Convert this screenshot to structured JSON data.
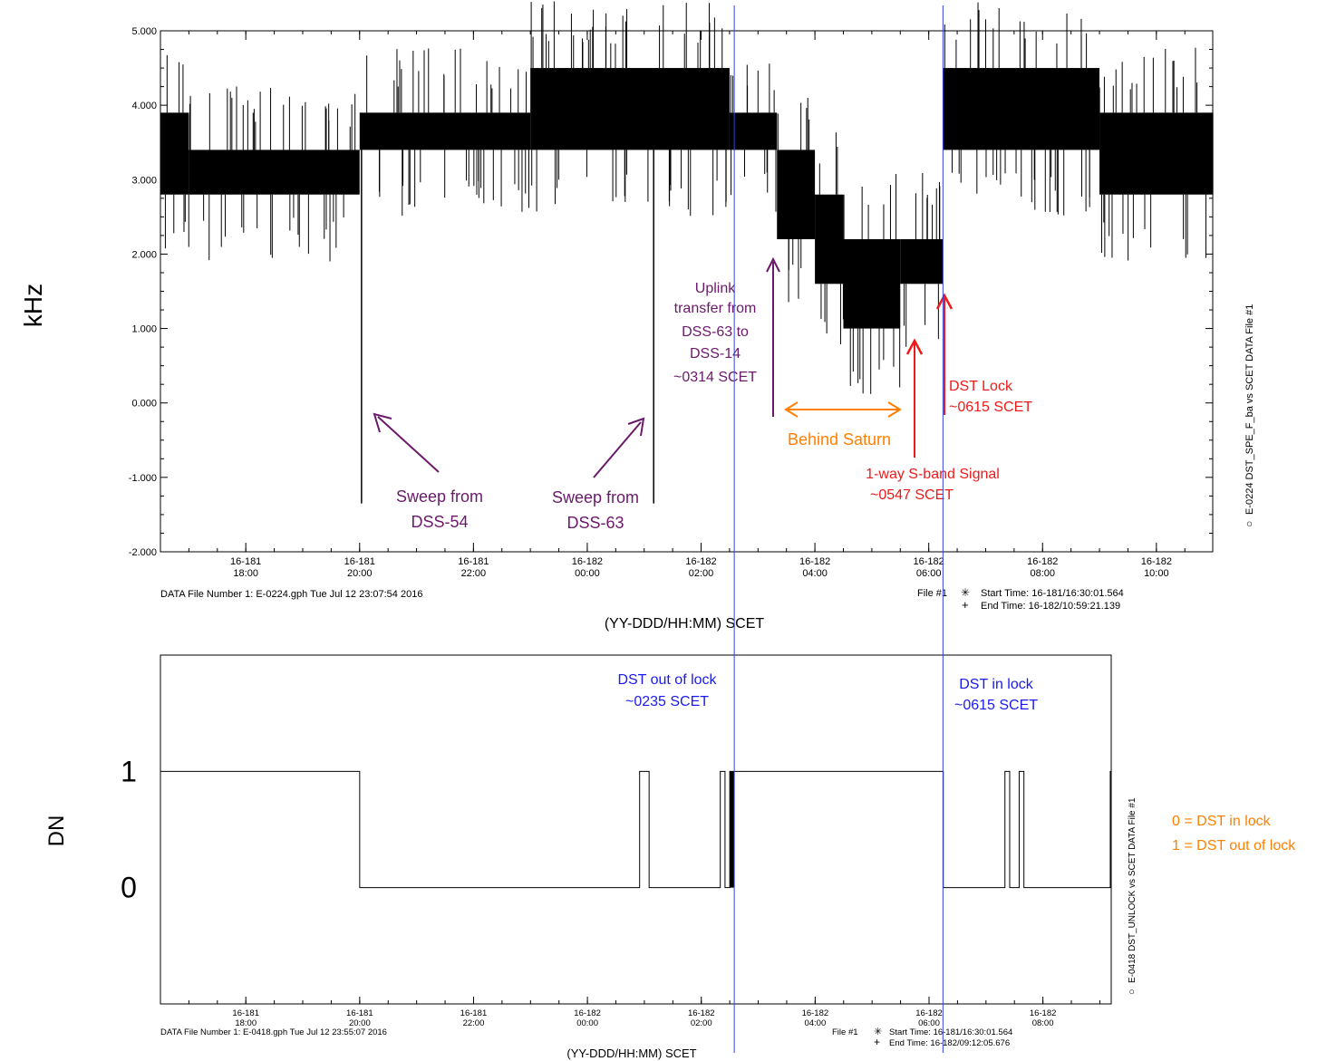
{
  "colors": {
    "trace": "#000000",
    "marker_line": "#3344dd",
    "purple": "#6b1a6b",
    "orange": "#ff8000",
    "red": "#ee1a1a",
    "blue": "#1a1aee"
  },
  "chart_data": [
    {
      "type": "line",
      "title": "",
      "xlabel": "(YY-DDD/HH:MM) SCET",
      "ylabel": "kHz",
      "ylim": [
        -2.0,
        5.0
      ],
      "y_ticks": [
        "5.000",
        "4.000",
        "3.000",
        "2.000",
        "1.000",
        "0.000",
        "-1.000",
        "-2.000"
      ],
      "x_range_hours": [
        16.5,
        34.99
      ],
      "x_ticks": [
        {
          "day": "16-181",
          "time": "18:00"
        },
        {
          "day": "16-181",
          "time": "20:00"
        },
        {
          "day": "16-181",
          "time": "22:00"
        },
        {
          "day": "16-182",
          "time": "00:00"
        },
        {
          "day": "16-182",
          "time": "02:00"
        },
        {
          "day": "16-182",
          "time": "04:00"
        },
        {
          "day": "16-182",
          "time": "06:00"
        },
        {
          "day": "16-182",
          "time": "08:00"
        },
        {
          "day": "16-182",
          "time": "10:00"
        }
      ],
      "side_label": "E-0224  DST_SPE_F_ba vs SCET  DATA File #1",
      "footer_left": "DATA File Number 1: E-0224.gph  Tue Jul 12 23:07:54 2016",
      "footer_file": "File #1",
      "start_time": "Start Time: 16-181/16:30:01.564",
      "end_time": "End Time: 16-182/10:59:21.139",
      "segments": [
        {
          "from": "16-181/16:30",
          "to": "16-181/17:00",
          "low": 2.8,
          "high": 3.9
        },
        {
          "from": "16-181/17:00",
          "to": "16-181/20:00",
          "low": 2.8,
          "high": 3.4
        },
        {
          "from": "16-181/20:00",
          "to": "16-181/23:00",
          "low": 3.4,
          "high": 3.9
        },
        {
          "from": "16-181/23:00",
          "to": "16-182/02:30",
          "low": 3.4,
          "high": 4.5
        },
        {
          "from": "16-182/02:30",
          "to": "16-182/03:20",
          "low": 3.4,
          "high": 3.9
        },
        {
          "from": "16-182/03:20",
          "to": "16-182/04:00",
          "low": 2.2,
          "high": 3.4
        },
        {
          "from": "16-182/04:00",
          "to": "16-182/04:30",
          "low": 1.6,
          "high": 2.8
        },
        {
          "from": "16-182/04:30",
          "to": "16-182/05:30",
          "low": 1.0,
          "high": 2.2
        },
        {
          "from": "16-182/05:30",
          "to": "16-182/06:15",
          "low": 1.6,
          "high": 2.2
        },
        {
          "from": "16-182/06:15",
          "to": "16-182/09:00",
          "low": 3.4,
          "high": 4.5
        },
        {
          "from": "16-182/09:00",
          "to": "16-182/11:00",
          "low": 2.8,
          "high": 3.9
        }
      ],
      "sweeps": [
        {
          "time": "16-181/20:02",
          "min": -1.35
        },
        {
          "time": "16-182/01:10",
          "min": -1.35
        }
      ],
      "annotations": {
        "sweep_54": {
          "lines": [
            "Sweep from",
            "DSS-54"
          ]
        },
        "sweep_63": {
          "lines": [
            "Sweep from",
            "DSS-63"
          ]
        },
        "uplink": {
          "lines": [
            "Uplink",
            "transfer from",
            "DSS-63 to",
            "DSS-14",
            "~0314 SCET"
          ]
        },
        "behind_saturn": "Behind Saturn",
        "one_way": {
          "lines": [
            "1-way S-band Signal",
            "~0547 SCET"
          ]
        },
        "dst_lock": {
          "lines": [
            "DST Lock",
            "~0615 SCET"
          ]
        }
      }
    },
    {
      "type": "line",
      "title": "",
      "xlabel": "(YY-DDD/HH:MM) SCET",
      "ylabel": "DN",
      "y_ticks": [
        "1",
        "0"
      ],
      "ylim": [
        -1,
        2
      ],
      "x_range_hours": [
        16.5,
        33.2
      ],
      "x_ticks": [
        {
          "day": "16-181",
          "time": "18:00"
        },
        {
          "day": "16-181",
          "time": "20:00"
        },
        {
          "day": "16-181",
          "time": "22:00"
        },
        {
          "day": "16-182",
          "time": "00:00"
        },
        {
          "day": "16-182",
          "time": "02:00"
        },
        {
          "day": "16-182",
          "time": "04:00"
        },
        {
          "day": "16-182",
          "time": "06:00"
        },
        {
          "day": "16-182",
          "time": "08:00"
        }
      ],
      "side_label": "E-0418 DST_UNLOCK vs SCET DATA File #1",
      "footer_left": "DATA File Number 1: E-0418.gph  Tue Jul 12 23:55:07 2016",
      "footer_file": "File #1",
      "start_time": "Start Time: 16-181/16:30:01.564",
      "end_time": "End Time: 16-182/09:12:05.676",
      "steps": [
        {
          "x": "16-181/16:30",
          "y": 1
        },
        {
          "x": "16-181/20:00",
          "y": 0
        },
        {
          "x": "16-182/00:55",
          "y": 1
        },
        {
          "x": "16-182/01:05",
          "y": 0
        },
        {
          "x": "16-182/02:20",
          "y": 1
        },
        {
          "x": "16-182/02:25",
          "y": 0
        },
        {
          "x": "16-182/02:30",
          "y": 1
        },
        {
          "x": "16-182/06:15",
          "y": 0
        },
        {
          "x": "16-182/07:20",
          "y": 1
        },
        {
          "x": "16-182/07:25",
          "y": 0
        },
        {
          "x": "16-182/07:35",
          "y": 1
        },
        {
          "x": "16-182/07:40",
          "y": 0
        },
        {
          "x": "16-182/09:11",
          "y": 1
        }
      ],
      "annotations": {
        "out_of_lock": {
          "lines": [
            "DST out of lock",
            "~0235 SCET"
          ]
        },
        "in_lock": {
          "lines": [
            "DST in lock",
            "~0615 SCET"
          ]
        }
      },
      "legend": {
        "lines": [
          "0 = DST in lock",
          "1 = DST out of lock"
        ],
        "placement": "right"
      }
    }
  ],
  "markers": [
    {
      "label": "DST out of lock",
      "time": "16-182/02:35"
    },
    {
      "label": "DST in lock",
      "time": "16-182/06:15"
    }
  ]
}
